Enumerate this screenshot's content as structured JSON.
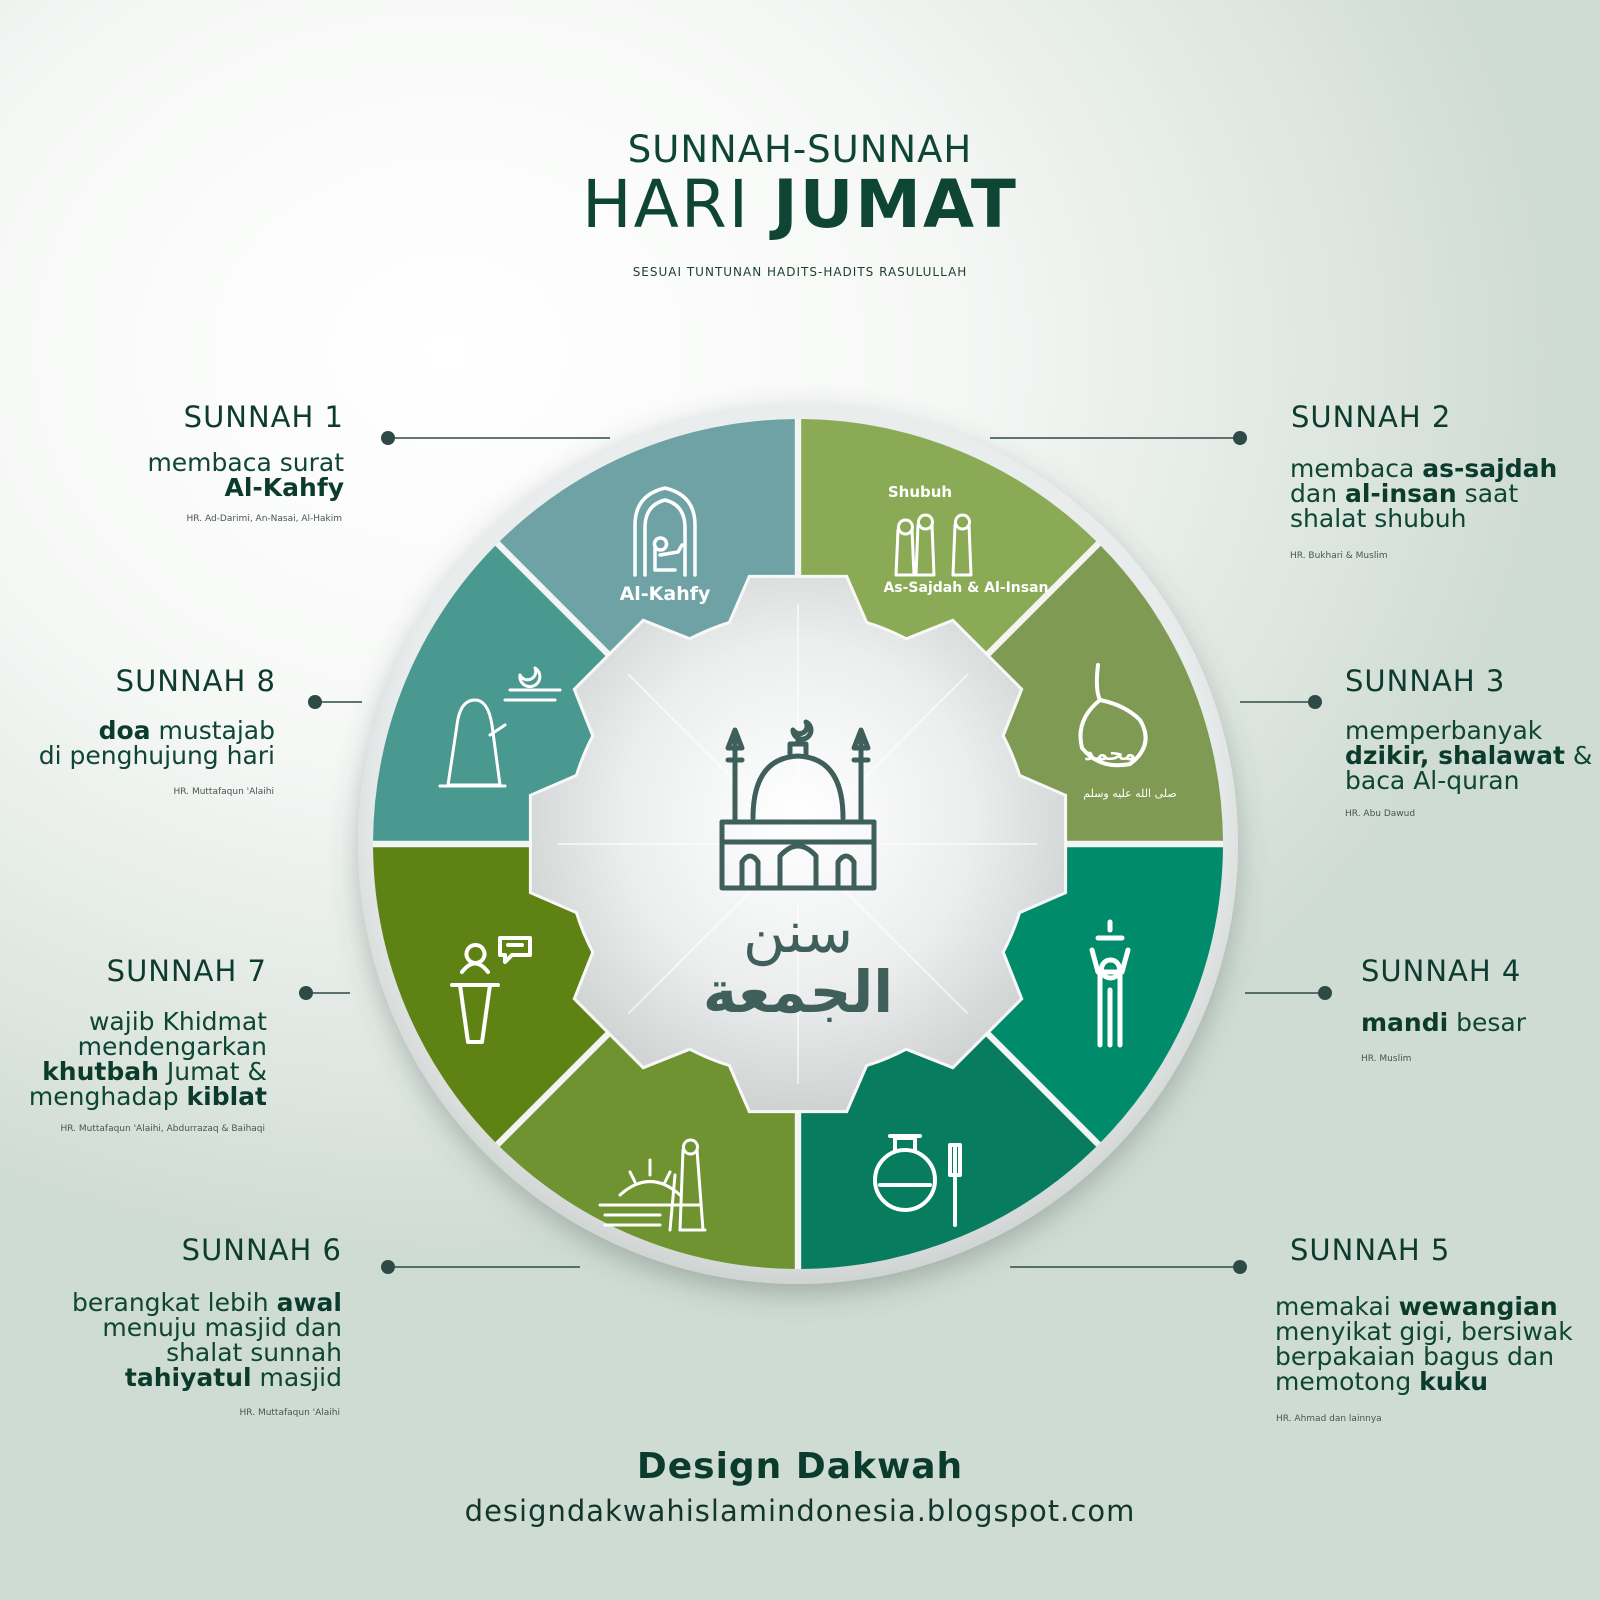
{
  "header": {
    "line1": "SUNNAH-SUNNAH",
    "line2_regular": "HARI ",
    "line2_bold": "JUMAT",
    "subtitle": "SESUAI TUNTUNAN HADITS-HADITS RASULULLAH"
  },
  "center": {
    "arabic_line1": "سنن",
    "arabic_line2": "الجمعة"
  },
  "segments": [
    {
      "label_top": "",
      "label_bottom": "Al-Kahfy",
      "color": "#8aaa55",
      "icon": "reading-quran-icon"
    },
    {
      "label_top": "Shubuh",
      "label_bottom": "As-Sajdah & Al-Insan",
      "color": "#7e9a53",
      "icon": "congregation-prayer-icon"
    },
    {
      "label_top": "محمد",
      "label_bottom": "صلى الله عليه وسلم",
      "color": "#008c6a",
      "icon": "prayer-beads-icon"
    },
    {
      "label_top": "",
      "label_bottom": "",
      "color": "#077c5e",
      "icon": "shower-icon"
    },
    {
      "label_top": "",
      "label_bottom": "",
      "color": "#6f9330",
      "icon": "perfume-toothbrush-icon"
    },
    {
      "label_top": "",
      "label_bottom": "",
      "color": "#5e8214",
      "icon": "walking-to-mosque-icon"
    },
    {
      "label_top": "",
      "label_bottom": "",
      "color": "#4a9990",
      "icon": "khutbah-podium-icon"
    },
    {
      "label_top": "",
      "label_bottom": "",
      "color": "#6fa2a4",
      "icon": "woman-praying-icon"
    }
  ],
  "sunnah": [
    {
      "title": "SUNNAH 1",
      "lines": [
        [
          {
            "t": "membaca surat",
            "b": false
          }
        ],
        [
          {
            "t": "Al-Kahfy",
            "b": true
          }
        ]
      ],
      "ref": "HR. Ad-Darimi, An-Nasai, Al-Hakim"
    },
    {
      "title": "SUNNAH 2",
      "lines": [
        [
          {
            "t": "membaca ",
            "b": false
          },
          {
            "t": "as-sajdah",
            "b": true
          }
        ],
        [
          {
            "t": "dan ",
            "b": false
          },
          {
            "t": "al-insan",
            "b": true
          },
          {
            "t": " saat",
            "b": false
          }
        ],
        [
          {
            "t": "shalat shubuh",
            "b": false
          }
        ]
      ],
      "ref": "HR. Bukhari & Muslim"
    },
    {
      "title": "SUNNAH 3",
      "lines": [
        [
          {
            "t": "memperbanyak",
            "b": false
          }
        ],
        [
          {
            "t": "dzikir, shalawat",
            "b": true
          },
          {
            "t": " &",
            "b": false
          }
        ],
        [
          {
            "t": "baca Al-quran",
            "b": false
          }
        ]
      ],
      "ref": "HR. Abu Dawud"
    },
    {
      "title": "SUNNAH 4",
      "lines": [
        [
          {
            "t": "mandi",
            "b": true
          },
          {
            "t": " besar",
            "b": false
          }
        ]
      ],
      "ref": "HR. Muslim"
    },
    {
      "title": "SUNNAH 5",
      "lines": [
        [
          {
            "t": "memakai ",
            "b": false
          },
          {
            "t": "wewangian",
            "b": true
          }
        ],
        [
          {
            "t": "menyikat gigi, bersiwak",
            "b": false
          }
        ],
        [
          {
            "t": "berpakaian bagus dan",
            "b": false
          }
        ],
        [
          {
            "t": "memotong ",
            "b": false
          },
          {
            "t": "kuku",
            "b": true
          }
        ]
      ],
      "ref": "HR. Ahmad dan lainnya"
    },
    {
      "title": "SUNNAH 6",
      "lines": [
        [
          {
            "t": "berangkat lebih ",
            "b": false
          },
          {
            "t": "awal",
            "b": true
          }
        ],
        [
          {
            "t": "menuju masjid dan",
            "b": false
          }
        ],
        [
          {
            "t": "shalat sunnah",
            "b": false
          }
        ],
        [
          {
            "t": "tahiyatul",
            "b": true
          },
          {
            "t": " masjid",
            "b": false
          }
        ]
      ],
      "ref": "HR. Muttafaqun 'Alaihi"
    },
    {
      "title": "SUNNAH 7",
      "lines": [
        [
          {
            "t": "wajib Khidmat",
            "b": false
          }
        ],
        [
          {
            "t": "mendengarkan",
            "b": false
          }
        ],
        [
          {
            "t": "khutbah",
            "b": true
          },
          {
            "t": " Jumat &",
            "b": false
          }
        ],
        [
          {
            "t": "menghadap ",
            "b": false
          },
          {
            "t": "kiblat",
            "b": true
          }
        ]
      ],
      "ref": "HR. Muttafaqun 'Alaihi, Abdurrazaq & Baihaqi"
    },
    {
      "title": "SUNNAH 8",
      "lines": [
        [
          {
            "t": "doa",
            "b": true
          },
          {
            "t": " mustajab",
            "b": false
          }
        ],
        [
          {
            "t": "di penghujung hari",
            "b": false
          }
        ]
      ],
      "ref": "HR. Muttafaqun 'Alaihi"
    }
  ],
  "footer": {
    "title": "Design Dakwah",
    "url": "designdakwahislamindonesia.blogspot.com"
  },
  "colors": {
    "text_dark": "#0e3b2f",
    "line": "#2e4a47",
    "rim": "#e2e5e5"
  }
}
